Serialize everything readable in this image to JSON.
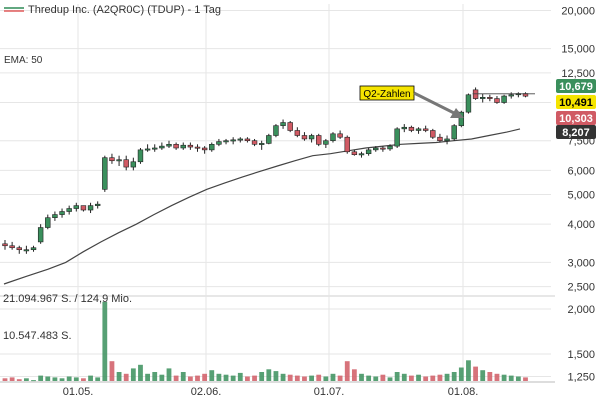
{
  "legend": {
    "title": "Thredup Inc. (A2QR0C) (TDUP) - 1 Tag",
    "line_color": "#2e8b57",
    "line_color2": "#e05a5a"
  },
  "ema_label": "EMA: 50",
  "annotation": "Q2-Zahlen",
  "volume_labels": [
    "21.094.967 S. / 124,9 Mio.",
    "10.547.483 S."
  ],
  "price_tags": [
    {
      "value": "10,679",
      "bg": "#3a8f5c",
      "fg": "#ffffff"
    },
    {
      "value": "10,491",
      "bg": "#f5e400",
      "fg": "#000000"
    },
    {
      "value": "10,303",
      "bg": "#d05a64",
      "fg": "#ffffff"
    },
    {
      "value": "8,207",
      "bg": "#333333",
      "fg": "#ffffff"
    }
  ],
  "chart_data": {
    "type": "candlestick",
    "price_axis": {
      "scale": "log",
      "ticks": [
        2.5,
        3,
        4,
        5,
        6,
        7.5,
        10,
        12.5,
        15,
        20
      ],
      "tick_labels": [
        "2,500",
        "3,000",
        "4,000",
        "5,000",
        "6,000",
        "7,500",
        "",
        "12,500",
        "15,000",
        "20,000"
      ],
      "range": [
        2.4,
        21
      ]
    },
    "volume_axis": {
      "ticks": [
        1.25,
        1.5,
        2.0
      ],
      "tick_labels": [
        "1,250",
        "1,500",
        "2,000"
      ],
      "range": [
        1.2,
        2.1
      ]
    },
    "x_ticks": [
      "01.05.",
      "02.06.",
      "01.07.",
      "01.08."
    ],
    "up_color": "#3a8f5c",
    "down_color": "#d05a64",
    "ema_color": "#444444",
    "candles": [
      [
        3.45,
        3.55,
        3.3,
        3.4
      ],
      [
        3.4,
        3.5,
        3.3,
        3.35
      ],
      [
        3.35,
        3.4,
        3.2,
        3.3
      ],
      [
        3.3,
        3.4,
        3.2,
        3.3
      ],
      [
        3.3,
        3.4,
        3.25,
        3.35
      ],
      [
        3.5,
        4.0,
        3.45,
        3.9
      ],
      [
        3.9,
        4.3,
        3.85,
        4.2
      ],
      [
        4.2,
        4.4,
        4.1,
        4.3
      ],
      [
        4.3,
        4.5,
        4.2,
        4.4
      ],
      [
        4.4,
        4.6,
        4.3,
        4.5
      ],
      [
        4.5,
        4.7,
        4.4,
        4.6
      ],
      [
        4.6,
        4.6,
        4.4,
        4.45
      ],
      [
        4.45,
        4.7,
        4.35,
        4.6
      ],
      [
        4.6,
        4.75,
        4.5,
        4.65
      ],
      [
        5.2,
        6.7,
        5.1,
        6.6
      ],
      [
        6.6,
        6.8,
        6.3,
        6.45
      ],
      [
        6.45,
        6.7,
        6.2,
        6.5
      ],
      [
        6.5,
        6.7,
        6.0,
        6.15
      ],
      [
        6.15,
        6.6,
        6.0,
        6.4
      ],
      [
        6.4,
        7.1,
        6.3,
        7.0
      ],
      [
        7.0,
        7.3,
        6.9,
        7.05
      ],
      [
        7.05,
        7.3,
        6.9,
        7.1
      ],
      [
        7.1,
        7.4,
        7.0,
        7.2
      ],
      [
        7.2,
        7.5,
        7.1,
        7.3
      ],
      [
        7.3,
        7.4,
        7.0,
        7.1
      ],
      [
        7.1,
        7.4,
        7.0,
        7.25
      ],
      [
        7.25,
        7.4,
        7.0,
        7.15
      ],
      [
        7.15,
        7.3,
        6.9,
        7.1
      ],
      [
        7.1,
        7.2,
        6.8,
        7.0
      ],
      [
        7.0,
        7.4,
        6.9,
        7.3
      ],
      [
        7.3,
        7.6,
        7.2,
        7.45
      ],
      [
        7.45,
        7.6,
        7.3,
        7.5
      ],
      [
        7.5,
        7.7,
        7.3,
        7.55
      ],
      [
        7.55,
        7.7,
        7.4,
        7.6
      ],
      [
        7.6,
        7.7,
        7.4,
        7.5
      ],
      [
        7.5,
        7.6,
        7.2,
        7.3
      ],
      [
        7.3,
        7.5,
        7.0,
        7.35
      ],
      [
        7.35,
        7.9,
        7.3,
        7.8
      ],
      [
        7.8,
        8.5,
        7.7,
        8.4
      ],
      [
        8.4,
        8.8,
        8.2,
        8.6
      ],
      [
        8.6,
        8.7,
        8.0,
        8.1
      ],
      [
        8.1,
        8.3,
        7.7,
        7.8
      ],
      [
        7.8,
        8.0,
        7.5,
        7.6
      ],
      [
        7.6,
        7.9,
        7.4,
        7.8
      ],
      [
        7.8,
        7.9,
        7.2,
        7.3
      ],
      [
        7.3,
        7.6,
        7.1,
        7.5
      ],
      [
        7.5,
        8.0,
        7.4,
        7.9
      ],
      [
        7.9,
        8.1,
        7.6,
        7.7
      ],
      [
        7.7,
        7.8,
        6.8,
        6.9
      ],
      [
        6.9,
        7.0,
        6.7,
        6.75
      ],
      [
        6.75,
        6.9,
        6.6,
        6.8
      ],
      [
        6.8,
        7.1,
        6.7,
        7.0
      ],
      [
        7.0,
        7.2,
        6.9,
        7.1
      ],
      [
        7.1,
        7.2,
        6.9,
        7.05
      ],
      [
        7.05,
        7.3,
        6.95,
        7.2
      ],
      [
        7.2,
        8.3,
        7.1,
        8.2
      ],
      [
        8.2,
        8.5,
        8.0,
        8.3
      ],
      [
        8.3,
        8.4,
        8.0,
        8.1
      ],
      [
        8.1,
        8.3,
        7.9,
        8.2
      ],
      [
        8.2,
        8.4,
        8.0,
        8.1
      ],
      [
        8.1,
        8.2,
        7.6,
        7.7
      ],
      [
        7.7,
        7.9,
        7.4,
        7.5
      ],
      [
        7.5,
        7.8,
        7.3,
        7.6
      ],
      [
        7.6,
        8.5,
        7.5,
        8.4
      ],
      [
        8.4,
        9.4,
        8.3,
        9.3
      ],
      [
        9.3,
        10.7,
        9.2,
        10.6
      ],
      [
        11.0,
        11.2,
        10.2,
        10.3
      ],
      [
        10.3,
        10.7,
        10.0,
        10.4
      ],
      [
        10.4,
        10.6,
        10.1,
        10.3
      ],
      [
        10.3,
        10.5,
        9.9,
        10.0
      ],
      [
        10.0,
        10.6,
        9.9,
        10.5
      ],
      [
        10.5,
        10.8,
        10.3,
        10.6
      ],
      [
        10.6,
        10.8,
        10.4,
        10.7
      ],
      [
        10.7,
        10.8,
        10.4,
        10.49
      ]
    ],
    "ema": [
      [
        0,
        2.55
      ],
      [
        5,
        2.7
      ],
      [
        10,
        2.85
      ],
      [
        14,
        3.0
      ],
      [
        18,
        3.25
      ],
      [
        22,
        3.5
      ],
      [
        26,
        3.75
      ],
      [
        30,
        4.0
      ],
      [
        34,
        4.3
      ],
      [
        38,
        4.6
      ],
      [
        42,
        4.9
      ],
      [
        46,
        5.2
      ],
      [
        50,
        5.45
      ],
      [
        54,
        5.7
      ],
      [
        58,
        5.95
      ],
      [
        62,
        6.2
      ],
      [
        66,
        6.45
      ],
      [
        70,
        6.7
      ],
      [
        74,
        6.8
      ],
      [
        78,
        6.95
      ],
      [
        82,
        7.1
      ],
      [
        86,
        7.2
      ],
      [
        90,
        7.3
      ],
      [
        94,
        7.35
      ],
      [
        98,
        7.4
      ],
      [
        102,
        7.5
      ],
      [
        106,
        7.6
      ],
      [
        110,
        7.8
      ],
      [
        114,
        8.0
      ],
      [
        117,
        8.2
      ]
    ],
    "volumes": [
      1.23,
      1.24,
      1.22,
      1.23,
      1.21,
      1.26,
      1.25,
      1.24,
      1.23,
      1.25,
      1.24,
      1.23,
      1.26,
      1.24,
      2.08,
      1.42,
      1.3,
      1.28,
      1.34,
      1.38,
      1.28,
      1.3,
      1.27,
      1.34,
      1.26,
      1.3,
      1.25,
      1.26,
      1.28,
      1.32,
      1.28,
      1.27,
      1.26,
      1.29,
      1.25,
      1.26,
      1.3,
      1.33,
      1.31,
      1.28,
      1.27,
      1.26,
      1.25,
      1.26,
      1.27,
      1.25,
      1.28,
      1.26,
      1.42,
      1.33,
      1.28,
      1.26,
      1.25,
      1.27,
      1.24,
      1.3,
      1.28,
      1.26,
      1.27,
      1.25,
      1.26,
      1.27,
      1.28,
      1.3,
      1.35,
      1.43,
      1.36,
      1.32,
      1.3,
      1.28,
      1.27,
      1.26,
      1.25,
      1.24
    ]
  }
}
